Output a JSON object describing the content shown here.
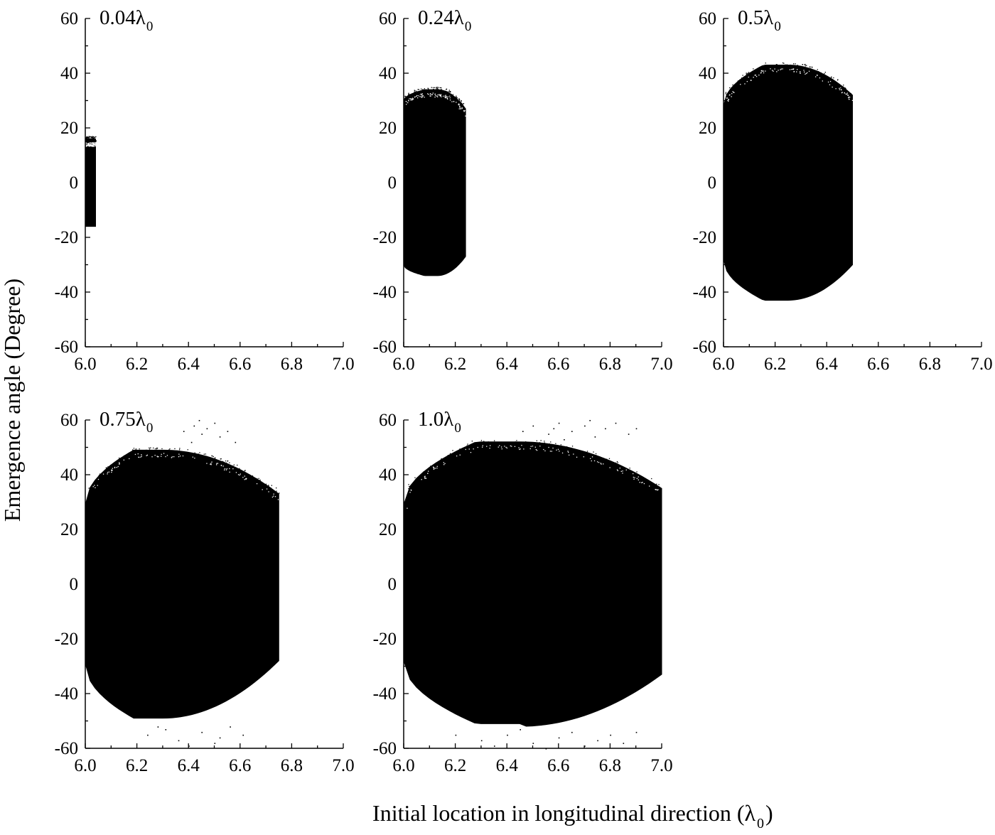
{
  "figure": {
    "ylabel": "Emergence angle (Degree)",
    "xlabel_main": "Initial location in longitudinal direction (λ",
    "xlabel_sub": "0",
    "xlabel_close": ")"
  },
  "chart_data": [
    {
      "type": "scatter",
      "label": "0.04λ",
      "label_sub": "0",
      "xlim": [
        6.0,
        7.0
      ],
      "ylim": [
        -60,
        60
      ],
      "xticks": [
        "6.0",
        "6.2",
        "6.4",
        "6.6",
        "6.8",
        "7.0"
      ],
      "yticks": [
        "60",
        "40",
        "20",
        "0",
        "-20",
        "-40",
        "-60"
      ],
      "region": {
        "x_start": 6.0,
        "x_end": 6.04,
        "y_min_left": -16,
        "y_max_left": 16,
        "y_peak": 16,
        "x_peak": 6.02,
        "y_min_right": -16,
        "y_max_right": 16
      },
      "scatter_outliers": []
    },
    {
      "type": "scatter",
      "label": "0.24λ",
      "label_sub": "0",
      "xlim": [
        6.0,
        7.0
      ],
      "ylim": [
        -60,
        60
      ],
      "xticks": [
        "6.0",
        "6.2",
        "6.4",
        "6.6",
        "6.8",
        "7.0"
      ],
      "yticks": [
        "60",
        "40",
        "20",
        "0",
        "-20",
        "-40",
        "-60"
      ],
      "region": {
        "x_start": 6.0,
        "x_end": 6.24,
        "y_min_left": -30,
        "y_max_left": 30,
        "y_peak": 34,
        "x_peak": 6.13,
        "y_min_right": -27,
        "y_max_right": 27
      },
      "scatter_outliers": []
    },
    {
      "type": "scatter",
      "label": "0.5λ",
      "label_sub": "0",
      "xlim": [
        6.0,
        7.0
      ],
      "ylim": [
        -60,
        60
      ],
      "xticks": [
        "6.0",
        "6.2",
        "6.4",
        "6.6",
        "6.8",
        "7.0"
      ],
      "yticks": [
        "60",
        "40",
        "20",
        "0",
        "-20",
        "-40",
        "-60"
      ],
      "region": {
        "x_start": 6.0,
        "x_end": 6.5,
        "y_min_left": -28,
        "y_max_left": 28,
        "y_peak": 43,
        "x_peak": 6.25,
        "y_min_right": -30,
        "y_max_right": 32
      },
      "scatter_outliers": []
    },
    {
      "type": "scatter",
      "label": "0.75λ",
      "label_sub": "0",
      "xlim": [
        6.0,
        7.0
      ],
      "ylim": [
        -60,
        60
      ],
      "xticks": [
        "6.0",
        "6.2",
        "6.4",
        "6.6",
        "6.8",
        "7.0"
      ],
      "yticks": [
        "60",
        "40",
        "20",
        "0",
        "-20",
        "-40",
        "-60"
      ],
      "region": {
        "x_start": 6.0,
        "x_end": 6.75,
        "y_min_left": -29,
        "y_max_left": 29,
        "y_peak": 49,
        "x_peak": 6.3,
        "y_min_right": -28,
        "y_max_right": 33
      },
      "scatter_outliers": [
        {
          "x": 6.38,
          "y": 56
        },
        {
          "x": 6.42,
          "y": 58
        },
        {
          "x": 6.45,
          "y": 55
        },
        {
          "x": 6.5,
          "y": 59
        },
        {
          "x": 6.52,
          "y": 54
        },
        {
          "x": 6.41,
          "y": 52
        },
        {
          "x": 6.47,
          "y": 57
        },
        {
          "x": 6.55,
          "y": 56
        },
        {
          "x": 6.44,
          "y": 60
        },
        {
          "x": 6.58,
          "y": 52
        },
        {
          "x": 6.24,
          "y": -55
        },
        {
          "x": 6.31,
          "y": -53
        },
        {
          "x": 6.36,
          "y": -57
        },
        {
          "x": 6.45,
          "y": -54
        },
        {
          "x": 6.5,
          "y": -58
        },
        {
          "x": 6.56,
          "y": -52
        },
        {
          "x": 6.4,
          "y": -59
        },
        {
          "x": 6.61,
          "y": -55
        },
        {
          "x": 6.28,
          "y": -52
        },
        {
          "x": 6.52,
          "y": -56
        }
      ]
    },
    {
      "type": "scatter",
      "label": "1.0λ",
      "label_sub": "0",
      "xlim": [
        6.0,
        7.0
      ],
      "ylim": [
        -60,
        60
      ],
      "xticks": [
        "6.0",
        "6.2",
        "6.4",
        "6.6",
        "6.8",
        "7.0"
      ],
      "yticks": [
        "60",
        "40",
        "20",
        "0",
        "-20",
        "-40",
        "-60"
      ],
      "region": {
        "x_start": 6.0,
        "x_end": 7.0,
        "y_min_left": -28,
        "y_max_left": 29,
        "y_peak": 52,
        "x_peak": 6.45,
        "y_min_right": -33,
        "y_max_right": 35
      },
      "scatter_outliers": [
        {
          "x": 6.5,
          "y": 58
        },
        {
          "x": 6.56,
          "y": 55
        },
        {
          "x": 6.6,
          "y": 59
        },
        {
          "x": 6.65,
          "y": 56
        },
        {
          "x": 6.7,
          "y": 58
        },
        {
          "x": 6.74,
          "y": 54
        },
        {
          "x": 6.78,
          "y": 57
        },
        {
          "x": 6.82,
          "y": 59
        },
        {
          "x": 6.87,
          "y": 55
        },
        {
          "x": 6.62,
          "y": 53
        },
        {
          "x": 6.46,
          "y": 56
        },
        {
          "x": 6.9,
          "y": 57
        },
        {
          "x": 6.72,
          "y": 60
        },
        {
          "x": 6.58,
          "y": 57
        },
        {
          "x": 6.2,
          "y": -55
        },
        {
          "x": 6.3,
          "y": -57
        },
        {
          "x": 6.4,
          "y": -55
        },
        {
          "x": 6.5,
          "y": -58
        },
        {
          "x": 6.6,
          "y": -56
        },
        {
          "x": 6.7,
          "y": -59
        },
        {
          "x": 6.8,
          "y": -55
        },
        {
          "x": 6.85,
          "y": -58
        },
        {
          "x": 6.9,
          "y": -54
        },
        {
          "x": 6.55,
          "y": -60
        },
        {
          "x": 6.65,
          "y": -54
        },
        {
          "x": 6.75,
          "y": -57
        },
        {
          "x": 6.45,
          "y": -53
        },
        {
          "x": 6.35,
          "y": -59
        }
      ]
    }
  ]
}
